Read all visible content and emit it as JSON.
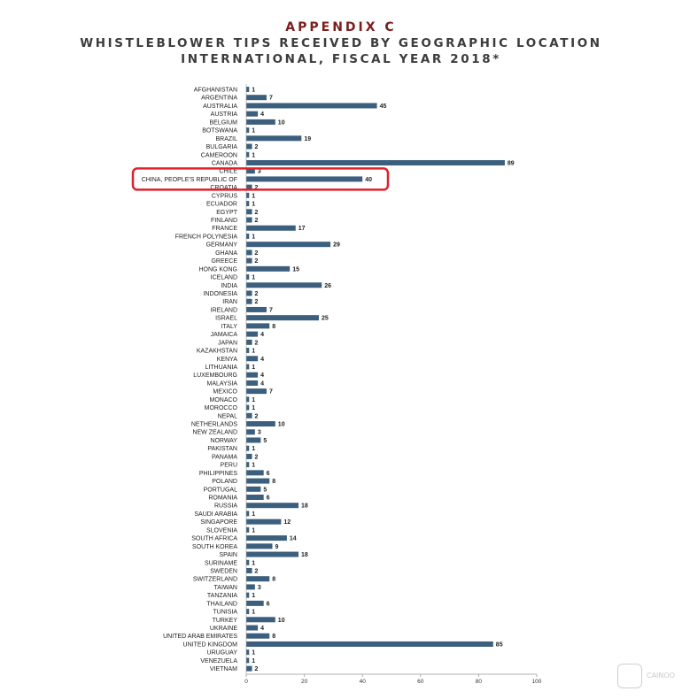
{
  "header": {
    "appendix": "APPENDIX C",
    "title_line1": "WHISTLEBLOWER TIPS RECEIVED BY GEOGRAPHIC LOCATION",
    "title_line2": "INTERNATIONAL, FISCAL YEAR 2018*"
  },
  "highlight": {
    "category": "CHINA, PEOPLE'S REPUBLIC OF",
    "color": "#e0202a"
  },
  "watermark": {
    "icon": "brand-logo-icon",
    "text": "CAINOO"
  },
  "colors": {
    "bar": "#3b5f7d",
    "axis": "#999999",
    "title_accent": "#7a1d1d"
  },
  "chart_data": {
    "type": "bar",
    "orientation": "horizontal",
    "title": "WHISTLEBLOWER TIPS RECEIVED BY GEOGRAPHIC LOCATION INTERNATIONAL, FISCAL YEAR 2018*",
    "xlabel": "",
    "ylabel": "",
    "xlim": [
      0,
      100
    ],
    "xticks": [
      0,
      20,
      40,
      60,
      80,
      100
    ],
    "grid": false,
    "categories": [
      "AFGHANISTAN",
      "ARGENTINA",
      "AUSTRALIA",
      "AUSTRIA",
      "BELGIUM",
      "BOTSWANA",
      "BRAZIL",
      "BULGARIA",
      "CAMEROON",
      "CANADA",
      "CHILE",
      "CHINA, PEOPLE'S REPUBLIC OF",
      "CROATIA",
      "CYPRUS",
      "ECUADOR",
      "EGYPT",
      "FINLAND",
      "FRANCE",
      "FRENCH POLYNESIA",
      "GERMANY",
      "GHANA",
      "GREECE",
      "HONG KONG",
      "ICELAND",
      "INDIA",
      "INDONESIA",
      "IRAN",
      "IRELAND",
      "ISRAEL",
      "ITALY",
      "JAMAICA",
      "JAPAN",
      "KAZAKHSTAN",
      "KENYA",
      "LITHUANIA",
      "LUXEMBOURG",
      "MALAYSIA",
      "MEXICO",
      "MONACO",
      "MOROCCO",
      "NEPAL",
      "NETHERLANDS",
      "NEW ZEALAND",
      "NORWAY",
      "PAKISTAN",
      "PANAMA",
      "PERU",
      "PHILIPPINES",
      "POLAND",
      "PORTUGAL",
      "ROMANIA",
      "RUSSIA",
      "SAUDI ARABIA",
      "SINGAPORE",
      "SLOVENIA",
      "SOUTH AFRICA",
      "SOUTH KOREA",
      "SPAIN",
      "SURINAME",
      "SWEDEN",
      "SWITZERLAND",
      "TAIWAN",
      "TANZANIA",
      "THAILAND",
      "TUNISIA",
      "TURKEY",
      "UKRAINE",
      "UNITED ARAB EMIRATES",
      "UNITED KINGDOM",
      "URUGUAY",
      "VENEZUELA",
      "VIETNAM"
    ],
    "values": [
      1,
      7,
      45,
      4,
      10,
      1,
      19,
      2,
      1,
      89,
      3,
      40,
      2,
      1,
      1,
      2,
      2,
      17,
      1,
      29,
      2,
      2,
      15,
      1,
      26,
      2,
      2,
      7,
      25,
      8,
      4,
      2,
      1,
      4,
      1,
      4,
      4,
      7,
      1,
      1,
      2,
      10,
      3,
      5,
      1,
      2,
      1,
      6,
      8,
      5,
      6,
      18,
      1,
      12,
      1,
      14,
      9,
      18,
      1,
      2,
      8,
      3,
      1,
      6,
      1,
      10,
      4,
      8,
      85,
      1,
      1,
      2
    ]
  }
}
